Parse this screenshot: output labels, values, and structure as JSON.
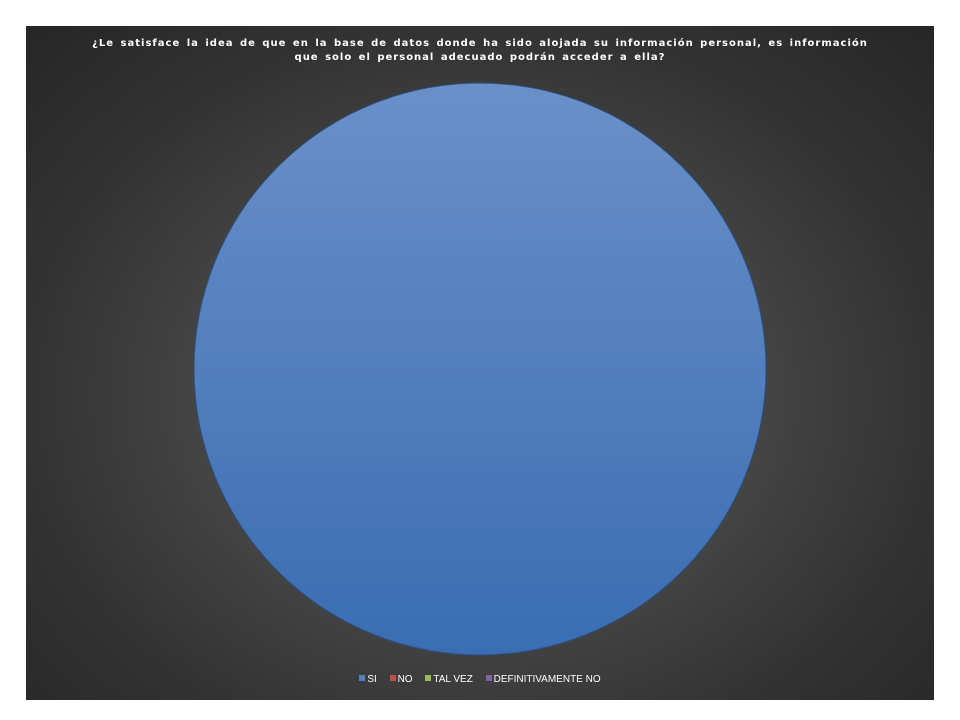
{
  "chart_data": {
    "type": "pie",
    "title_lines": [
      "¿Le satisface la idea de que en la base de datos donde ha sido alojada su información personal, es información",
      "que solo el personal adecuado podrán acceder a ella?"
    ],
    "categories": [
      "SI",
      "NO",
      "TAL VEZ",
      "DEFINITIVAMENTE NO"
    ],
    "values": [
      100,
      0,
      0,
      0
    ],
    "colors": [
      "#4f81bd",
      "#c0504d",
      "#9bbb59",
      "#8064a2"
    ],
    "legend_position": "bottom"
  }
}
